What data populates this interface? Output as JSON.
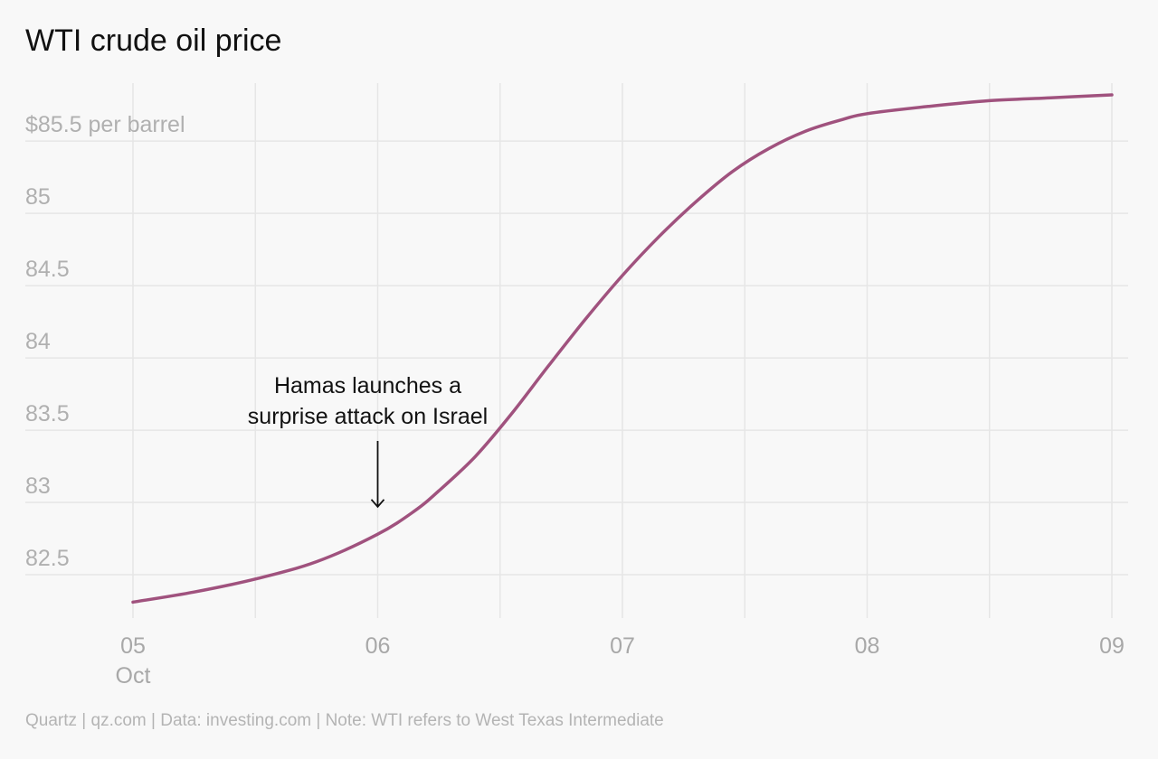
{
  "chart_data": {
    "type": "line",
    "title": "WTI crude oil price",
    "unit_label": "$85.5 per barrel",
    "y_ticks": [
      {
        "value": 85.5,
        "label": "$85.5 per barrel"
      },
      {
        "value": 85,
        "label": "85"
      },
      {
        "value": 84.5,
        "label": "84.5"
      },
      {
        "value": 84,
        "label": "84"
      },
      {
        "value": 83.5,
        "label": "83.5"
      },
      {
        "value": 83,
        "label": "83"
      },
      {
        "value": 82.5,
        "label": "82.5"
      }
    ],
    "x_ticks": [
      {
        "value": 5,
        "label": "05",
        "sublabel": "Oct"
      },
      {
        "value": 6,
        "label": "06",
        "sublabel": ""
      },
      {
        "value": 7,
        "label": "07",
        "sublabel": ""
      },
      {
        "value": 8,
        "label": "08",
        "sublabel": ""
      },
      {
        "value": 9,
        "label": "09",
        "sublabel": ""
      }
    ],
    "x_gridlines": [
      5,
      5.5,
      6,
      6.5,
      7,
      7.5,
      8,
      8.5,
      9
    ],
    "ylim": [
      82.2,
      85.92
    ],
    "xlim": [
      5,
      9
    ],
    "grid": true,
    "series": [
      {
        "color": "#a0527e",
        "points": [
          [
            5,
            82.31
          ],
          [
            5.25,
            82.38
          ],
          [
            5.5,
            82.47
          ],
          [
            5.75,
            82.59
          ],
          [
            6,
            82.78
          ],
          [
            6.15,
            82.94
          ],
          [
            6.25,
            83.08
          ],
          [
            6.4,
            83.32
          ],
          [
            6.55,
            83.62
          ],
          [
            6.7,
            83.95
          ],
          [
            6.85,
            84.27
          ],
          [
            7,
            84.57
          ],
          [
            7.15,
            84.84
          ],
          [
            7.3,
            85.08
          ],
          [
            7.45,
            85.29
          ],
          [
            7.6,
            85.45
          ],
          [
            7.75,
            85.57
          ],
          [
            7.9,
            85.65
          ],
          [
            8,
            85.69
          ],
          [
            8.25,
            85.74
          ],
          [
            8.5,
            85.78
          ],
          [
            8.75,
            85.8
          ],
          [
            9,
            85.82
          ]
        ]
      }
    ],
    "annotation": {
      "lines": [
        "Hamas launches a",
        "surprise attack on Israel"
      ],
      "x": 6,
      "arrow_tip_y": 82.97,
      "arrow_top_y": 83.5
    }
  },
  "footer": "Quartz | qz.com | Data: investing.com | Note: WTI refers to West Texas Intermediate"
}
